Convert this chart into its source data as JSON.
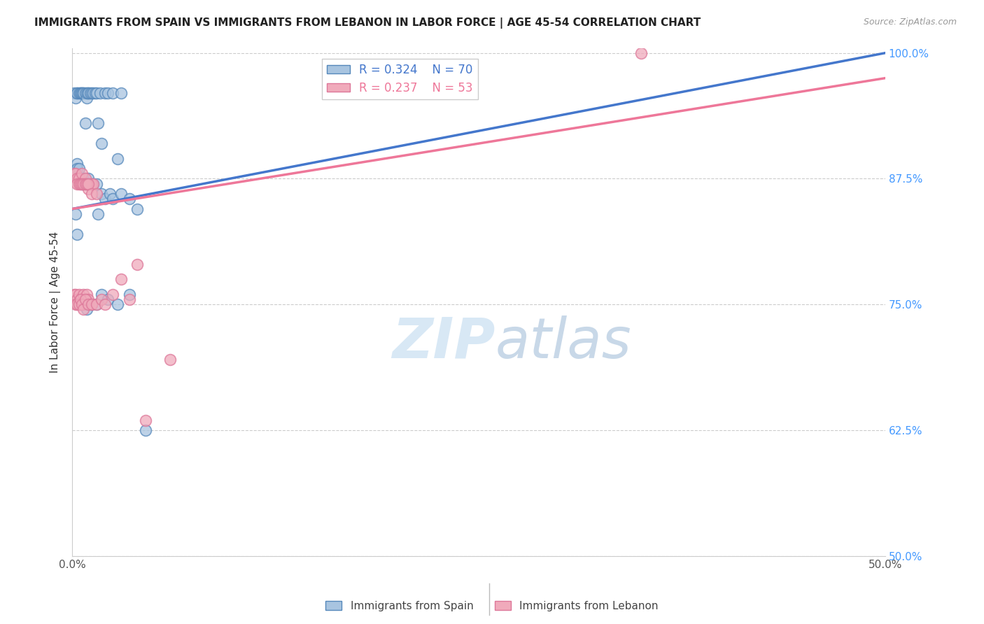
{
  "title": "IMMIGRANTS FROM SPAIN VS IMMIGRANTS FROM LEBANON IN LABOR FORCE | AGE 45-54 CORRELATION CHART",
  "source": "Source: ZipAtlas.com",
  "ylabel": "In Labor Force | Age 45-54",
  "xlim": [
    0.0,
    0.5
  ],
  "ylim": [
    0.5,
    1.005
  ],
  "xtick_positions": [
    0.0,
    0.1,
    0.2,
    0.3,
    0.4,
    0.5
  ],
  "xtick_labels": [
    "0.0%",
    "",
    "",
    "",
    "",
    "50.0%"
  ],
  "ytick_positions": [
    0.5,
    0.625,
    0.75,
    0.875,
    1.0
  ],
  "ytick_labels": [
    "50.0%",
    "62.5%",
    "75.0%",
    "87.5%",
    "100.0%"
  ],
  "legend_spain_r": "R = 0.324",
  "legend_spain_n": "N = 70",
  "legend_lebanon_r": "R = 0.237",
  "legend_lebanon_n": "N = 53",
  "color_spain_fill": "#A8C4E0",
  "color_spain_edge": "#5588BB",
  "color_lebanon_fill": "#F0AABB",
  "color_lebanon_edge": "#DD7799",
  "color_spain_line": "#4477CC",
  "color_lebanon_line": "#EE7799",
  "watermark_color": "#D8E8F5",
  "spain_line_x0": 0.0,
  "spain_line_y0": 0.845,
  "spain_line_x1": 0.5,
  "spain_line_y1": 1.0,
  "lebanon_line_x0": 0.0,
  "lebanon_line_y0": 0.845,
  "lebanon_line_x1": 0.5,
  "lebanon_line_y1": 0.975,
  "spain_x": [
    0.001,
    0.002,
    0.003,
    0.003,
    0.004,
    0.005,
    0.005,
    0.006,
    0.006,
    0.007,
    0.007,
    0.008,
    0.008,
    0.009,
    0.009,
    0.01,
    0.01,
    0.011,
    0.012,
    0.013,
    0.014,
    0.015,
    0.016,
    0.017,
    0.018,
    0.02,
    0.022,
    0.025,
    0.028,
    0.03,
    0.003,
    0.003,
    0.004,
    0.004,
    0.005,
    0.006,
    0.006,
    0.007,
    0.007,
    0.008,
    0.009,
    0.01,
    0.01,
    0.012,
    0.013,
    0.015,
    0.016,
    0.018,
    0.02,
    0.023,
    0.025,
    0.03,
    0.035,
    0.04,
    0.002,
    0.003,
    0.004,
    0.005,
    0.006,
    0.007,
    0.008,
    0.009,
    0.01,
    0.012,
    0.015,
    0.018,
    0.022,
    0.028,
    0.035,
    0.045
  ],
  "spain_y": [
    0.96,
    0.955,
    0.96,
    0.96,
    0.96,
    0.96,
    0.96,
    0.96,
    0.96,
    0.96,
    0.96,
    0.96,
    0.93,
    0.955,
    0.96,
    0.96,
    0.96,
    0.96,
    0.96,
    0.96,
    0.96,
    0.96,
    0.93,
    0.96,
    0.91,
    0.96,
    0.96,
    0.96,
    0.895,
    0.96,
    0.89,
    0.885,
    0.885,
    0.875,
    0.875,
    0.875,
    0.87,
    0.875,
    0.87,
    0.87,
    0.87,
    0.875,
    0.87,
    0.87,
    0.87,
    0.87,
    0.84,
    0.86,
    0.855,
    0.86,
    0.855,
    0.86,
    0.855,
    0.845,
    0.84,
    0.82,
    0.75,
    0.75,
    0.755,
    0.75,
    0.755,
    0.745,
    0.75,
    0.75,
    0.75,
    0.76,
    0.755,
    0.75,
    0.76,
    0.625
  ],
  "lebanon_x": [
    0.001,
    0.002,
    0.003,
    0.004,
    0.005,
    0.006,
    0.007,
    0.008,
    0.009,
    0.01,
    0.011,
    0.012,
    0.013,
    0.003,
    0.004,
    0.005,
    0.006,
    0.007,
    0.008,
    0.009,
    0.01,
    0.012,
    0.015,
    0.001,
    0.002,
    0.003,
    0.004,
    0.005,
    0.006,
    0.007,
    0.008,
    0.009,
    0.01,
    0.012,
    0.002,
    0.003,
    0.004,
    0.005,
    0.006,
    0.007,
    0.008,
    0.01,
    0.012,
    0.015,
    0.018,
    0.02,
    0.025,
    0.03,
    0.035,
    0.04,
    0.045,
    0.06,
    0.35
  ],
  "lebanon_y": [
    0.88,
    0.88,
    0.875,
    0.875,
    0.87,
    0.88,
    0.87,
    0.875,
    0.87,
    0.865,
    0.87,
    0.87,
    0.87,
    0.87,
    0.87,
    0.87,
    0.87,
    0.87,
    0.87,
    0.87,
    0.87,
    0.86,
    0.86,
    0.76,
    0.76,
    0.755,
    0.76,
    0.755,
    0.75,
    0.76,
    0.755,
    0.76,
    0.755,
    0.75,
    0.75,
    0.75,
    0.75,
    0.755,
    0.75,
    0.745,
    0.755,
    0.75,
    0.75,
    0.75,
    0.755,
    0.75,
    0.76,
    0.775,
    0.755,
    0.79,
    0.635,
    0.695,
    1.0
  ]
}
